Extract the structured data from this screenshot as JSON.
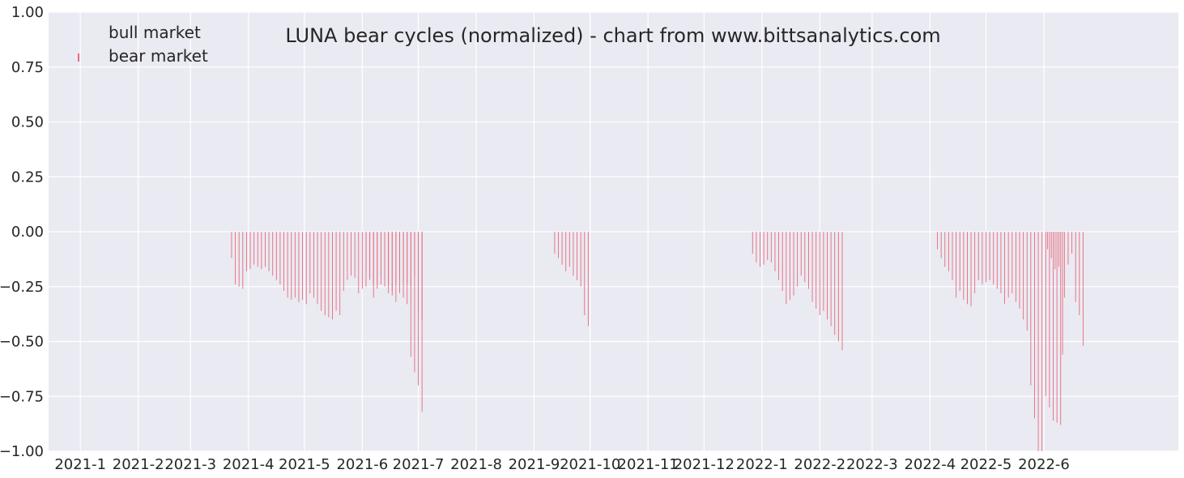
{
  "chart_data": {
    "type": "bar",
    "title": "LUNA bear cycles (normalized)  - chart from www.bittsanalytics.com",
    "xlabel": "",
    "ylabel": "",
    "ylim": [
      -1.0,
      1.0
    ],
    "yticks": [
      "1.00",
      "0.75",
      "0.50",
      "0.25",
      "0.00",
      "−0.25",
      "−0.50",
      "−0.75",
      "−1.00"
    ],
    "xlim": [
      "2020-12-15",
      "2022-08-12"
    ],
    "xticks": [
      {
        "date": "2021-01-01",
        "label": "2021-1"
      },
      {
        "date": "2021-02-01",
        "label": "2021-2"
      },
      {
        "date": "2021-03-01",
        "label": "2021-3"
      },
      {
        "date": "2021-04-01",
        "label": "2021-4"
      },
      {
        "date": "2021-05-01",
        "label": "2021-5"
      },
      {
        "date": "2021-06-01",
        "label": "2021-6"
      },
      {
        "date": "2021-07-01",
        "label": "2021-7"
      },
      {
        "date": "2021-08-01",
        "label": "2021-8"
      },
      {
        "date": "2021-09-01",
        "label": "2021-9"
      },
      {
        "date": "2021-10-01",
        "label": "2021-10"
      },
      {
        "date": "2021-11-01",
        "label": "2021-11"
      },
      {
        "date": "2021-12-01",
        "label": "2021-12"
      },
      {
        "date": "2022-01-01",
        "label": "2022-1"
      },
      {
        "date": "2022-02-01",
        "label": "2022-2"
      },
      {
        "date": "2022-03-01",
        "label": "2022-3"
      },
      {
        "date": "2022-04-01",
        "label": "2022-4"
      },
      {
        "date": "2022-05-01",
        "label": "2022-5"
      },
      {
        "date": "2022-06-01",
        "label": "2022-6"
      }
    ],
    "grid": true,
    "legend_position": "top-left",
    "series": [
      {
        "name": "bull market",
        "color": "#6aa84f",
        "segments": []
      },
      {
        "name": "bear market",
        "color": "#e8697a",
        "segments": [
          {
            "start": "2021-03-23",
            "values": [
              -0.12,
              -0.24,
              -0.25,
              -0.26,
              -0.18,
              -0.17,
              -0.15,
              -0.16,
              -0.17,
              -0.16,
              -0.18,
              -0.2,
              -0.22,
              -0.24,
              -0.27,
              -0.3,
              -0.31,
              -0.3,
              -0.32,
              -0.31,
              -0.33,
              -0.28,
              -0.3,
              -0.33,
              -0.36,
              -0.38,
              -0.39,
              -0.4,
              -0.36,
              -0.38,
              -0.27,
              -0.22,
              -0.2,
              -0.21,
              -0.28,
              -0.26,
              -0.25,
              -0.22,
              -0.24,
              -0.26,
              -0.24,
              -0.25,
              -0.24,
              -0.27,
              -0.32,
              -0.28,
              -0.3,
              -0.33,
              -0.57,
              -0.64,
              -0.7,
              -0.82
            ]
          },
          {
            "start": "2021-06-03",
            "values": [
              -0.17,
              -0.21,
              -0.3,
              -0.24,
              -0.2,
              -0.22,
              -0.28,
              -0.29,
              -0.24,
              -0.21,
              -0.23,
              -0.24,
              -0.25,
              -0.2,
              -0.37,
              -0.4
            ]
          },
          {
            "start": "2021-09-12",
            "values": [
              -0.1,
              -0.12,
              -0.15,
              -0.18,
              -0.16,
              -0.2,
              -0.22,
              -0.25,
              -0.38,
              -0.43
            ]
          },
          {
            "start": "2021-12-27",
            "values": [
              -0.1,
              -0.14,
              -0.16,
              -0.15,
              -0.13,
              -0.14,
              -0.18,
              -0.22,
              -0.27,
              -0.33,
              -0.31,
              -0.29,
              -0.25,
              -0.2,
              -0.23,
              -0.26,
              -0.32,
              -0.35,
              -0.38,
              -0.36,
              -0.4,
              -0.43,
              -0.47,
              -0.5,
              -0.54
            ]
          },
          {
            "start": "2022-04-05",
            "values": [
              -0.08,
              -0.12,
              -0.16,
              -0.18,
              -0.22,
              -0.3,
              -0.27,
              -0.31,
              -0.33,
              -0.34,
              -0.28,
              -0.22,
              -0.24,
              -0.23,
              -0.22,
              -0.24,
              -0.26,
              -0.28,
              -0.33,
              -0.3,
              -0.28,
              -0.32,
              -0.35,
              -0.4,
              -0.45,
              -0.7,
              -0.85,
              -1.0,
              -1.0,
              -0.75,
              -0.8,
              -0.86,
              -0.87,
              -0.88,
              -0.3,
              -0.15,
              -0.1,
              -0.32,
              -0.38,
              -0.52
            ]
          },
          {
            "start": "2022-06-03",
            "values": [
              -0.08,
              -0.12,
              -0.17,
              -0.16,
              -0.56
            ]
          }
        ]
      }
    ]
  }
}
